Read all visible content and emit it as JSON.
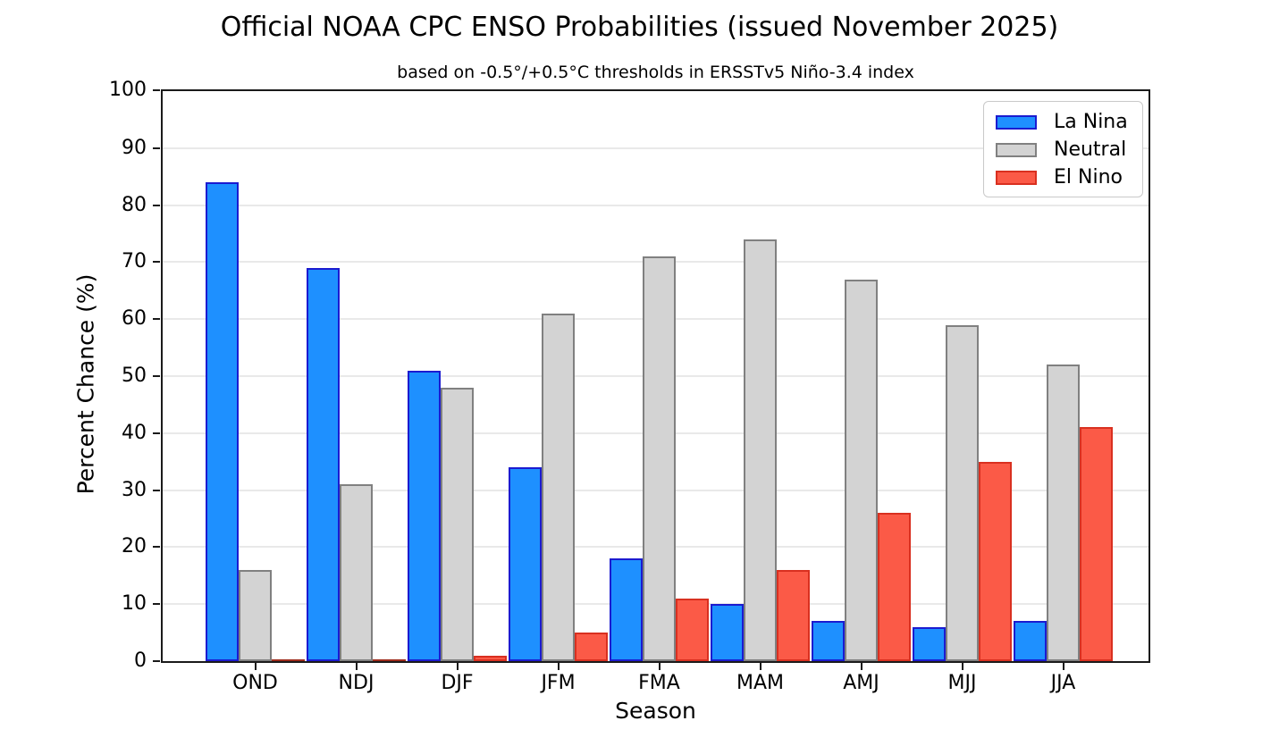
{
  "chart_data": {
    "type": "bar",
    "title": "Official NOAA CPC ENSO Probabilities (issued November 2025)",
    "subtitle": "based on -0.5°/+0.5°C thresholds in ERSSTv5 Niño-3.4 index",
    "xlabel": "Season",
    "ylabel": "Percent Chance (%)",
    "categories": [
      "OND",
      "NDJ",
      "DJF",
      "JFM",
      "FMA",
      "MAM",
      "AMJ",
      "MJJ",
      "JJA"
    ],
    "series": [
      {
        "name": "La Nina",
        "fill": "#1E90FF",
        "edge": "#1B1BD0",
        "values": [
          84,
          69,
          51,
          34,
          18,
          10,
          7,
          6,
          7
        ]
      },
      {
        "name": "Neutral",
        "fill": "#D3D3D3",
        "edge": "#808080",
        "values": [
          16,
          31,
          48,
          61,
          71,
          74,
          67,
          59,
          52
        ]
      },
      {
        "name": "El Nino",
        "fill": "#FB5A47",
        "edge": "#D93020",
        "values": [
          0,
          0,
          1,
          5,
          11,
          16,
          26,
          35,
          41
        ]
      }
    ],
    "ylim": [
      0,
      100
    ],
    "yticks": [
      0,
      10,
      20,
      30,
      40,
      50,
      60,
      70,
      80,
      90,
      100
    ],
    "grid": true,
    "legend_position": "upper right",
    "axis_color": "#1a1a1a",
    "grid_color": "#e9e9e9",
    "zero_bar_color": "#9E2B1B"
  }
}
